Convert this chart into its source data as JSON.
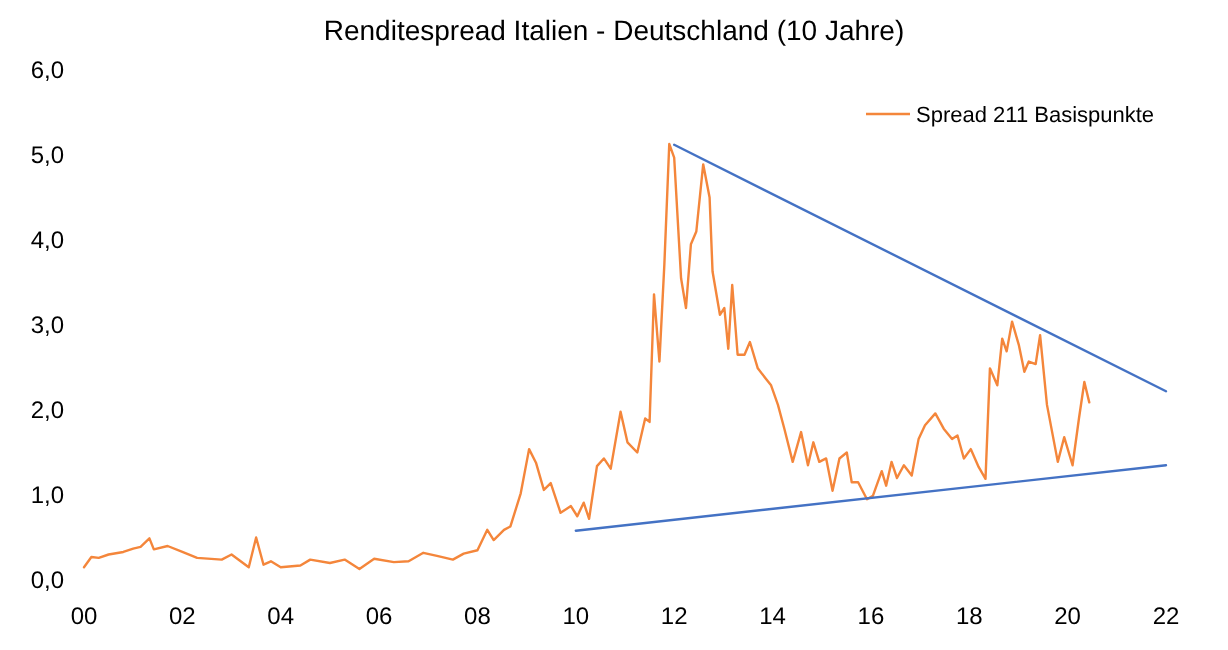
{
  "chart_data": {
    "type": "line",
    "title": "Renditespread Italien - Deutschland (10 Jahre)",
    "legend": "top right",
    "grid": false,
    "line_style": "solid",
    "xlim": [
      2000,
      2022
    ],
    "xticks": [
      {
        "value": 2000,
        "label": "00"
      },
      {
        "value": 2002,
        "label": "02"
      },
      {
        "value": 2004,
        "label": "04"
      },
      {
        "value": 2006,
        "label": "06"
      },
      {
        "value": 2008,
        "label": "08"
      },
      {
        "value": 2010,
        "label": "10"
      },
      {
        "value": 2012,
        "label": "12"
      },
      {
        "value": 2014,
        "label": "14"
      },
      {
        "value": 2016,
        "label": "16"
      },
      {
        "value": 2018,
        "label": "18"
      },
      {
        "value": 2020,
        "label": "20"
      },
      {
        "value": 2022,
        "label": "22"
      }
    ],
    "ylim": [
      0,
      6
    ],
    "yticks": [
      {
        "value": 0,
        "label": "0,0"
      },
      {
        "value": 1,
        "label": "1,0"
      },
      {
        "value": 2,
        "label": "2,0"
      },
      {
        "value": 3,
        "label": "3,0"
      },
      {
        "value": 4,
        "label": "4,0"
      },
      {
        "value": 5,
        "label": "5,0"
      },
      {
        "value": 6,
        "label": "6,0"
      }
    ],
    "series": [
      {
        "name": "Spread 211 Basispunkte",
        "color": "#f4863b",
        "x": [
          2000.0,
          2000.15,
          2000.3,
          2000.5,
          2000.8,
          2001.0,
          2001.15,
          2001.33,
          2001.42,
          2001.7,
          2002.0,
          2002.3,
          2002.8,
          2003.0,
          2003.35,
          2003.5,
          2003.65,
          2003.8,
          2004.0,
          2004.4,
          2004.6,
          2005.0,
          2005.3,
          2005.6,
          2005.9,
          2006.3,
          2006.6,
          2006.9,
          2007.2,
          2007.5,
          2007.72,
          2008.0,
          2008.2,
          2008.33,
          2008.54,
          2008.67,
          2008.88,
          2009.05,
          2009.19,
          2009.35,
          2009.49,
          2009.69,
          2009.9,
          2010.03,
          2010.16,
          2010.27,
          2010.43,
          2010.57,
          2010.71,
          2010.91,
          2011.05,
          2011.25,
          2011.41,
          2011.5,
          2011.59,
          2011.7,
          2011.8,
          2011.9,
          2012.0,
          2012.14,
          2012.24,
          2012.34,
          2012.45,
          2012.59,
          2012.72,
          2012.78,
          2012.93,
          2013.02,
          2013.1,
          2013.18,
          2013.29,
          2013.43,
          2013.54,
          2013.7,
          2013.86,
          2013.97,
          2014.11,
          2014.24,
          2014.41,
          2014.58,
          2014.72,
          2014.83,
          2014.95,
          2015.09,
          2015.22,
          2015.36,
          2015.51,
          2015.61,
          2015.74,
          2015.92,
          2016.04,
          2016.22,
          2016.31,
          2016.42,
          2016.53,
          2016.67,
          2016.83,
          2016.97,
          2017.1,
          2017.31,
          2017.48,
          2017.65,
          2017.76,
          2017.89,
          2018.03,
          2018.19,
          2018.33,
          2018.42,
          2018.57,
          2018.67,
          2018.76,
          2018.87,
          2019.01,
          2019.12,
          2019.21,
          2019.35,
          2019.44,
          2019.58,
          2019.8,
          2019.93,
          2020.1,
          2020.23,
          2020.34,
          2020.44
        ],
        "values": [
          0.15,
          0.27,
          0.26,
          0.3,
          0.33,
          0.37,
          0.39,
          0.49,
          0.36,
          0.4,
          0.33,
          0.26,
          0.24,
          0.3,
          0.15,
          0.5,
          0.18,
          0.22,
          0.15,
          0.17,
          0.24,
          0.2,
          0.24,
          0.13,
          0.25,
          0.21,
          0.22,
          0.32,
          0.28,
          0.24,
          0.31,
          0.35,
          0.59,
          0.47,
          0.59,
          0.63,
          1.02,
          1.54,
          1.38,
          1.06,
          1.14,
          0.79,
          0.87,
          0.75,
          0.91,
          0.72,
          1.34,
          1.43,
          1.31,
          1.98,
          1.62,
          1.5,
          1.9,
          1.86,
          3.36,
          2.57,
          3.71,
          5.13,
          4.97,
          3.55,
          3.2,
          3.95,
          4.1,
          4.89,
          4.5,
          3.63,
          3.12,
          3.2,
          2.72,
          3.47,
          2.65,
          2.65,
          2.8,
          2.49,
          2.37,
          2.29,
          2.06,
          1.78,
          1.39,
          1.74,
          1.35,
          1.62,
          1.39,
          1.43,
          1.05,
          1.43,
          1.5,
          1.15,
          1.15,
          0.95,
          0.99,
          1.28,
          1.11,
          1.39,
          1.2,
          1.35,
          1.23,
          1.66,
          1.82,
          1.96,
          1.78,
          1.66,
          1.7,
          1.43,
          1.54,
          1.33,
          1.19,
          2.49,
          2.29,
          2.84,
          2.69,
          3.04,
          2.76,
          2.45,
          2.57,
          2.54,
          2.88,
          2.06,
          1.39,
          1.68,
          1.35,
          1.9,
          2.33,
          2.09
        ]
      },
      {
        "type": "line",
        "color": "#4472c4",
        "x": [
          2012.0,
          2022.0
        ],
        "values": [
          5.12,
          2.22
        ]
      },
      {
        "type": "line",
        "color": "#4472c4",
        "x": [
          2010.0,
          2022.0
        ],
        "values": [
          0.58,
          1.35
        ]
      }
    ]
  }
}
